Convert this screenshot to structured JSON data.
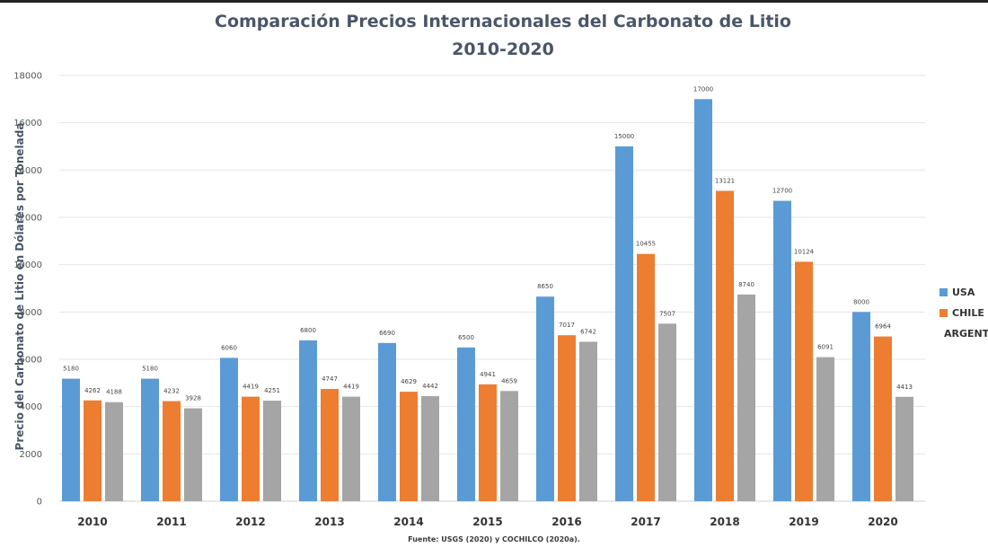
{
  "chart_data": {
    "type": "bar",
    "title": "Comparación Precios Internacionales del Carbonato de Litio",
    "subtitle": "2010-2020",
    "xlabel": "",
    "ylabel": "Precio del Carbonato de Litio en Dólares por Tonelada",
    "source": "Fuente: USGS (2020) y COCHILCO  (2020a).",
    "ylim": [
      0,
      18000
    ],
    "yticks": [
      0,
      2000,
      4000,
      6000,
      8000,
      10000,
      12000,
      14000,
      16000,
      18000
    ],
    "grid": true,
    "legend_position": "right",
    "categories": [
      "2010",
      "2011",
      "2012",
      "2013",
      "2014",
      "2015",
      "2016",
      "2017",
      "2018",
      "2019",
      "2020"
    ],
    "series": [
      {
        "name": "USA",
        "color": "#5b9bd5",
        "values": [
          5180,
          5180,
          6060,
          6800,
          6690,
          6500,
          8650,
          15000,
          17000,
          12700,
          8000
        ]
      },
      {
        "name": "CHILE",
        "color": "#ed7d31",
        "values": [
          4262,
          4232,
          4419,
          4747,
          4629,
          4941,
          7017,
          10455,
          13121,
          10124,
          6964
        ]
      },
      {
        "name": "ARGENTINA",
        "color": "#a5a5a5",
        "values": [
          4188,
          3928,
          4251,
          4419,
          4442,
          4659,
          6742,
          7507,
          8740,
          6091,
          4413
        ]
      }
    ]
  }
}
